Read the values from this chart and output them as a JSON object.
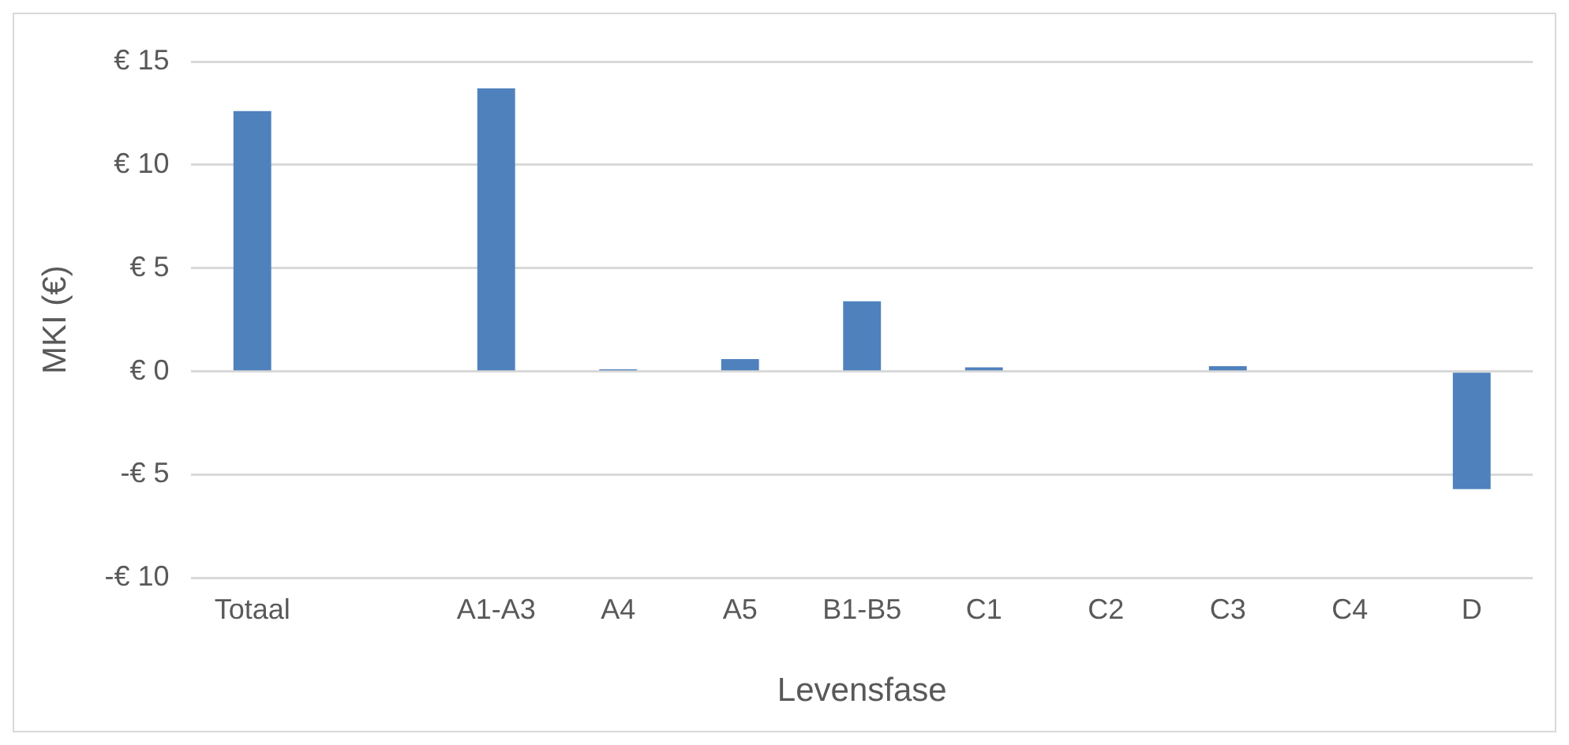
{
  "chart_data": {
    "type": "bar",
    "xlabel": "Levensfase",
    "ylabel": "MKI (€)",
    "categories": [
      "Totaal",
      null,
      "A1-A3",
      "A4",
      "A5",
      "B1-B5",
      "C1",
      "C2",
      "C3",
      "C4",
      "D"
    ],
    "values": [
      12.6,
      null,
      13.7,
      0.1,
      0.6,
      3.4,
      0.2,
      0,
      0.25,
      0,
      -5.7
    ],
    "color": "#4f81bd",
    "ylim": [
      -10,
      15
    ],
    "yticks": [
      {
        "value": -10,
        "label": "-€ 10"
      },
      {
        "value": -5,
        "label": "-€ 5"
      },
      {
        "value": 0,
        "label": "€ 0"
      },
      {
        "value": 5,
        "label": "€ 5"
      },
      {
        "value": 10,
        "label": "€ 10"
      },
      {
        "value": 15,
        "label": "€ 15"
      }
    ],
    "grid": "y",
    "legend": false
  }
}
